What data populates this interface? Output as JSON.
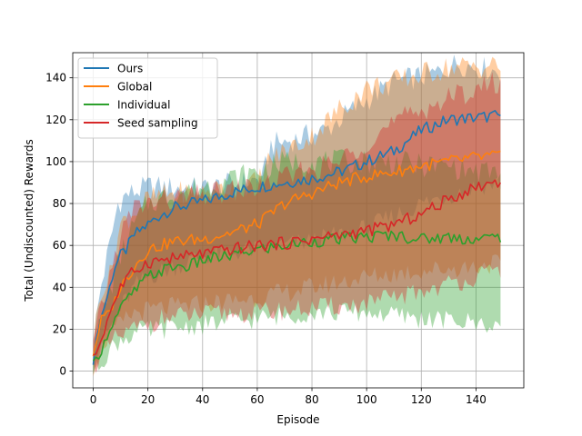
{
  "chart_data": {
    "type": "line",
    "title": "",
    "xlabel": "Episode",
    "ylabel": "Total (Undiscounted) Rewards",
    "xlim": [
      -7.5,
      157.5
    ],
    "ylim": [
      -8,
      152
    ],
    "xticks": [
      0,
      20,
      40,
      60,
      80,
      100,
      120,
      140
    ],
    "yticks": [
      0,
      20,
      40,
      60,
      80,
      100,
      120,
      140
    ],
    "grid": true,
    "legend_position": "upper-left",
    "x": {
      "start": 0,
      "end": 149,
      "step": 1
    },
    "series": [
      {
        "name": "Ours",
        "color": "#1f77b4",
        "anchors": [
          [
            0,
            5
          ],
          [
            2,
            22
          ],
          [
            5,
            35
          ],
          [
            8,
            50
          ],
          [
            10,
            55
          ],
          [
            12,
            58
          ],
          [
            15,
            65
          ],
          [
            20,
            70
          ],
          [
            25,
            75
          ],
          [
            30,
            78
          ],
          [
            40,
            81
          ],
          [
            50,
            85
          ],
          [
            60,
            88
          ],
          [
            70,
            90
          ],
          [
            80,
            92
          ],
          [
            90,
            95
          ],
          [
            100,
            100
          ],
          [
            110,
            105
          ],
          [
            120,
            115
          ],
          [
            130,
            120
          ],
          [
            140,
            121
          ],
          [
            149,
            122
          ]
        ],
        "band_upper": [
          [
            0,
            15
          ],
          [
            3,
            42
          ],
          [
            6,
            60
          ],
          [
            9,
            80
          ],
          [
            12,
            84
          ],
          [
            20,
            88
          ],
          [
            40,
            87
          ],
          [
            55,
            90
          ],
          [
            62,
            92
          ],
          [
            65,
            108
          ],
          [
            75,
            111
          ],
          [
            85,
            115
          ],
          [
            95,
            125
          ],
          [
            110,
            138
          ],
          [
            125,
            142
          ],
          [
            133,
            147
          ],
          [
            149,
            143
          ]
        ],
        "band_lower": [
          [
            0,
            3
          ],
          [
            3,
            15
          ],
          [
            6,
            20
          ],
          [
            10,
            30
          ],
          [
            15,
            40
          ],
          [
            20,
            45
          ],
          [
            30,
            50
          ],
          [
            40,
            55
          ],
          [
            60,
            58
          ],
          [
            80,
            62
          ],
          [
            100,
            68
          ],
          [
            120,
            80
          ],
          [
            140,
            88
          ],
          [
            149,
            90
          ]
        ]
      },
      {
        "name": "Global",
        "color": "#ff7f0e",
        "anchors": [
          [
            0,
            8
          ],
          [
            3,
            25
          ],
          [
            6,
            28
          ],
          [
            10,
            40
          ],
          [
            15,
            50
          ],
          [
            20,
            58
          ],
          [
            30,
            62
          ],
          [
            40,
            63
          ],
          [
            50,
            66
          ],
          [
            60,
            70
          ],
          [
            65,
            75
          ],
          [
            70,
            80
          ],
          [
            80,
            85
          ],
          [
            90,
            90
          ],
          [
            100,
            93
          ],
          [
            110,
            95
          ],
          [
            120,
            98
          ],
          [
            130,
            100
          ],
          [
            140,
            102
          ],
          [
            149,
            103
          ]
        ],
        "band_upper": [
          [
            0,
            15
          ],
          [
            3,
            40
          ],
          [
            6,
            45
          ],
          [
            10,
            70
          ],
          [
            20,
            82
          ],
          [
            30,
            85
          ],
          [
            40,
            85
          ],
          [
            50,
            88
          ],
          [
            60,
            90
          ],
          [
            64,
            100
          ],
          [
            70,
            105
          ],
          [
            80,
            112
          ],
          [
            90,
            125
          ],
          [
            100,
            135
          ],
          [
            115,
            140
          ],
          [
            130,
            145
          ],
          [
            149,
            146
          ]
        ],
        "band_lower": [
          [
            0,
            2
          ],
          [
            3,
            12
          ],
          [
            8,
            20
          ],
          [
            15,
            28
          ],
          [
            25,
            30
          ],
          [
            40,
            32
          ],
          [
            60,
            35
          ],
          [
            80,
            40
          ],
          [
            100,
            45
          ],
          [
            120,
            48
          ],
          [
            140,
            50
          ],
          [
            149,
            52
          ]
        ]
      },
      {
        "name": "Individual",
        "color": "#2ca02c",
        "anchors": [
          [
            0,
            3
          ],
          [
            3,
            10
          ],
          [
            6,
            20
          ],
          [
            10,
            30
          ],
          [
            15,
            38
          ],
          [
            20,
            45
          ],
          [
            25,
            48
          ],
          [
            30,
            50
          ],
          [
            35,
            50
          ],
          [
            40,
            53
          ],
          [
            50,
            55
          ],
          [
            60,
            58
          ],
          [
            70,
            60
          ],
          [
            80,
            62
          ],
          [
            90,
            63
          ],
          [
            100,
            64
          ],
          [
            110,
            65
          ],
          [
            120,
            63
          ],
          [
            130,
            64
          ],
          [
            140,
            63
          ],
          [
            149,
            64
          ]
        ],
        "band_upper": [
          [
            0,
            10
          ],
          [
            3,
            25
          ],
          [
            6,
            38
          ],
          [
            10,
            55
          ],
          [
            15,
            70
          ],
          [
            20,
            80
          ],
          [
            30,
            85
          ],
          [
            40,
            88
          ],
          [
            50,
            92
          ],
          [
            60,
            95
          ],
          [
            70,
            100
          ],
          [
            80,
            100
          ],
          [
            90,
            100
          ],
          [
            100,
            100
          ],
          [
            110,
            100
          ],
          [
            120,
            98
          ],
          [
            130,
            98
          ],
          [
            140,
            95
          ],
          [
            149,
            95
          ]
        ],
        "band_lower": [
          [
            0,
            0
          ],
          [
            3,
            5
          ],
          [
            6,
            10
          ],
          [
            10,
            15
          ],
          [
            15,
            18
          ],
          [
            25,
            20
          ],
          [
            40,
            22
          ],
          [
            60,
            25
          ],
          [
            80,
            28
          ],
          [
            100,
            28
          ],
          [
            120,
            25
          ],
          [
            130,
            24
          ],
          [
            140,
            23
          ],
          [
            149,
            22
          ]
        ]
      },
      {
        "name": "Seed sampling",
        "color": "#d62728",
        "anchors": [
          [
            0,
            6
          ],
          [
            3,
            15
          ],
          [
            6,
            28
          ],
          [
            10,
            40
          ],
          [
            15,
            48
          ],
          [
            20,
            52
          ],
          [
            25,
            53
          ],
          [
            30,
            54
          ],
          [
            40,
            56
          ],
          [
            50,
            58
          ],
          [
            60,
            60
          ],
          [
            70,
            61
          ],
          [
            80,
            63
          ],
          [
            90,
            65
          ],
          [
            100,
            67
          ],
          [
            110,
            70
          ],
          [
            120,
            75
          ],
          [
            130,
            82
          ],
          [
            140,
            88
          ],
          [
            149,
            91
          ]
        ],
        "band_upper": [
          [
            0,
            12
          ],
          [
            3,
            30
          ],
          [
            6,
            45
          ],
          [
            10,
            65
          ],
          [
            15,
            78
          ],
          [
            20,
            80
          ],
          [
            30,
            82
          ],
          [
            40,
            84
          ],
          [
            50,
            86
          ],
          [
            60,
            88
          ],
          [
            70,
            92
          ],
          [
            80,
            96
          ],
          [
            90,
            100
          ],
          [
            100,
            110
          ],
          [
            110,
            118
          ],
          [
            120,
            125
          ],
          [
            130,
            130
          ],
          [
            140,
            135
          ],
          [
            149,
            138
          ]
        ],
        "band_lower": [
          [
            0,
            2
          ],
          [
            3,
            8
          ],
          [
            8,
            15
          ],
          [
            15,
            20
          ],
          [
            25,
            25
          ],
          [
            40,
            27
          ],
          [
            60,
            28
          ],
          [
            80,
            30
          ],
          [
            100,
            32
          ],
          [
            120,
            38
          ],
          [
            140,
            45
          ],
          [
            149,
            48
          ]
        ]
      }
    ]
  }
}
